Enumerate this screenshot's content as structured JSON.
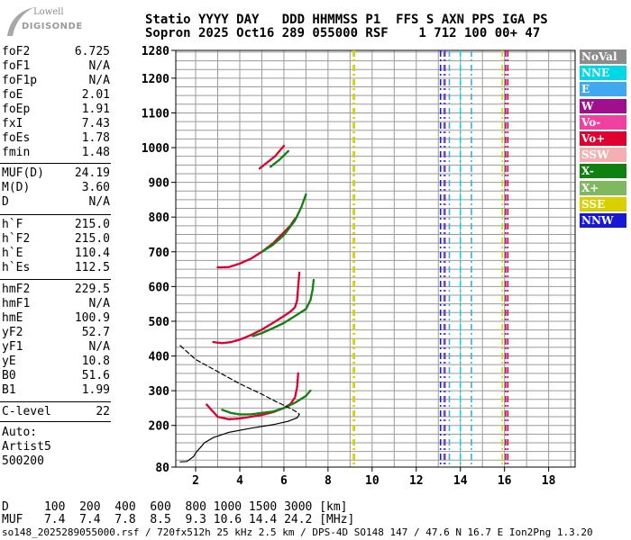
{
  "header": {
    "logo_top": "Lowell",
    "logo_bottom": "DIGISONDE",
    "line1": "Statio YYYY DAY   DDD HHMMSS P1  FFS S AXN PPS IGA PS",
    "line2": "Sopron 2025 Oct16 289 055000 RSF    1 712 100 00+ 47"
  },
  "params_group1": [
    {
      "name": "foF2",
      "value": "6.725"
    },
    {
      "name": "foF1",
      "value": "N/A"
    },
    {
      "name": "foF1p",
      "value": "N/A"
    },
    {
      "name": "foE",
      "value": "2.01"
    },
    {
      "name": "foEp",
      "value": "1.91"
    },
    {
      "name": "fxI",
      "value": "7.43"
    },
    {
      "name": "foEs",
      "value": "1.78"
    },
    {
      "name": "fmin",
      "value": "1.48"
    }
  ],
  "params_group2": [
    {
      "name": "MUF(D)",
      "value": "24.19"
    },
    {
      "name": "M(D)",
      "value": "3.60"
    },
    {
      "name": "D",
      "value": "N/A"
    }
  ],
  "params_group3": [
    {
      "name": "h`F",
      "value": "215.0"
    },
    {
      "name": "h`F2",
      "value": "215.0"
    },
    {
      "name": "h`E",
      "value": "110.4"
    },
    {
      "name": "h`Es",
      "value": "112.5"
    }
  ],
  "params_group4": [
    {
      "name": "hmF2",
      "value": "229.5"
    },
    {
      "name": "hmF1",
      "value": "N/A"
    },
    {
      "name": "hmE",
      "value": "100.9"
    },
    {
      "name": "yF2",
      "value": "52.7"
    },
    {
      "name": "yF1",
      "value": "N/A"
    },
    {
      "name": "yE",
      "value": "10.8"
    },
    {
      "name": "B0",
      "value": "51.6"
    },
    {
      "name": "B1",
      "value": "1.99"
    }
  ],
  "params_group5": [
    {
      "name": "C-level",
      "value": "22"
    }
  ],
  "autoscaling": {
    "line1": "Auto:",
    "line2": "Artist5",
    "line3": "500200"
  },
  "legend": [
    {
      "label": "NoVal",
      "color": "#8c8c8c"
    },
    {
      "label": "NNE",
      "color": "#00d8e8"
    },
    {
      "label": "E",
      "color": "#40a8f0"
    },
    {
      "label": "W",
      "color": "#a0108c"
    },
    {
      "label": "Vo-",
      "color": "#f040a0"
    },
    {
      "label": "Vo+",
      "color": "#e00030"
    },
    {
      "label": "SSW",
      "color": "#f4b0b0"
    },
    {
      "label": "X-",
      "color": "#108010"
    },
    {
      "label": "X+",
      "color": "#80b860"
    },
    {
      "label": "SSE",
      "color": "#d8d000"
    },
    {
      "label": "NNW",
      "color": "#1818d8"
    }
  ],
  "muf_table": {
    "line_d": "D     100  200  400  600  800 1000 1500 3000 [km]",
    "line_muf": "MUF   7.4  7.4  7.8  8.5  9.3 10.6 14.4 24.2 [MHz]"
  },
  "footer": "so148_2025289055000.rsf / 720fx512h 25 kHz 2.5 km / DPS-4D SO148 147 / 47.6 N 16.7 E Ion2Png 1.3.20",
  "chart_data": {
    "type": "scatter",
    "title": "",
    "xlabel": "",
    "ylabel": "",
    "xlim": [
      1.1,
      19.2
    ],
    "ylim": [
      80,
      1280
    ],
    "x_ticks": [
      2,
      4,
      6,
      8,
      10,
      12,
      14,
      16,
      18
    ],
    "y_ticks": [
      80,
      200,
      300,
      400,
      500,
      600,
      700,
      800,
      900,
      1000,
      1100,
      1200,
      1280
    ],
    "grid": true,
    "legend_position": "right",
    "series": [
      {
        "color": "#e00030",
        "points": [
          [
            2.5,
            260
          ],
          [
            3.0,
            225
          ],
          [
            3.5,
            218
          ],
          [
            4.0,
            220
          ],
          [
            4.5,
            225
          ],
          [
            5.0,
            230
          ],
          [
            5.5,
            238
          ],
          [
            6.0,
            250
          ],
          [
            6.3,
            262
          ],
          [
            6.5,
            280
          ],
          [
            6.6,
            310
          ],
          [
            6.65,
            350
          ]
        ]
      },
      {
        "color": "#108010",
        "points": [
          [
            3.2,
            245
          ],
          [
            3.6,
            236
          ],
          [
            4.0,
            232
          ],
          [
            4.5,
            232
          ],
          [
            5.0,
            236
          ],
          [
            5.5,
            240
          ],
          [
            6.0,
            250
          ],
          [
            6.5,
            265
          ],
          [
            7.0,
            285
          ],
          [
            7.2,
            300
          ]
        ]
      },
      {
        "color": "#e00030",
        "points": [
          [
            2.8,
            440
          ],
          [
            3.2,
            437
          ],
          [
            3.6,
            440
          ],
          [
            4.0,
            447
          ],
          [
            4.5,
            460
          ],
          [
            5.0,
            476
          ],
          [
            5.5,
            495
          ],
          [
            6.0,
            515
          ],
          [
            6.3,
            528
          ],
          [
            6.5,
            540
          ],
          [
            6.6,
            560
          ],
          [
            6.65,
            600
          ],
          [
            6.7,
            640
          ]
        ]
      },
      {
        "color": "#108010",
        "points": [
          [
            4.6,
            457
          ],
          [
            5.0,
            466
          ],
          [
            5.5,
            480
          ],
          [
            6.0,
            495
          ],
          [
            6.5,
            515
          ],
          [
            7.0,
            535
          ],
          [
            7.2,
            560
          ],
          [
            7.3,
            590
          ],
          [
            7.35,
            620
          ]
        ]
      },
      {
        "color": "#e00030",
        "points": [
          [
            3.0,
            655
          ],
          [
            3.5,
            656
          ],
          [
            4.0,
            666
          ],
          [
            4.5,
            680
          ],
          [
            5.0,
            700
          ],
          [
            5.5,
            724
          ],
          [
            6.0,
            756
          ],
          [
            6.3,
            776
          ],
          [
            6.5,
            795
          ]
        ]
      },
      {
        "color": "#108010",
        "points": [
          [
            5.0,
            700
          ],
          [
            5.5,
            720
          ],
          [
            6.0,
            748
          ],
          [
            6.5,
            790
          ],
          [
            6.8,
            830
          ],
          [
            7.0,
            865
          ]
        ]
      },
      {
        "color": "#e00030",
        "points": [
          [
            4.9,
            940
          ],
          [
            5.2,
            955
          ],
          [
            5.6,
            975
          ],
          [
            6.0,
            1005
          ]
        ]
      },
      {
        "color": "#108010",
        "points": [
          [
            5.4,
            945
          ],
          [
            5.8,
            965
          ],
          [
            6.2,
            990
          ]
        ]
      },
      {
        "color": "#000000",
        "points": [
          [
            1.3,
            95
          ],
          [
            1.6,
            96
          ],
          [
            1.9,
            110
          ],
          [
            2.05,
            125
          ],
          [
            2.2,
            135
          ],
          [
            2.4,
            150
          ],
          [
            2.8,
            165
          ],
          [
            3.5,
            180
          ],
          [
            4.5,
            192
          ],
          [
            5.5,
            202
          ],
          [
            6.2,
            212
          ],
          [
            6.6,
            222
          ],
          [
            6.7,
            232
          ]
        ]
      },
      {
        "color": "#000000",
        "points": [
          [
            1.3,
            430
          ],
          [
            2.0,
            390
          ],
          [
            3.0,
            355
          ],
          [
            4.0,
            320
          ],
          [
            5.0,
            290
          ],
          [
            5.6,
            270
          ],
          [
            6.2,
            252
          ],
          [
            6.6,
            238
          ],
          [
            6.7,
            232
          ]
        ]
      }
    ],
    "vertical_bands": [
      {
        "x": 9.15,
        "color": "#d8d000"
      },
      {
        "x": 9.2,
        "color": "#d8d000"
      },
      {
        "x": 13.1,
        "color": "#1818d8"
      },
      {
        "x": 13.25,
        "color": "#40a8f0"
      },
      {
        "x": 13.3,
        "color": "#a0108c"
      },
      {
        "x": 13.5,
        "color": "#40a8f0"
      },
      {
        "x": 14.0,
        "color": "#00d8e8"
      },
      {
        "x": 14.5,
        "color": "#40a8f0"
      },
      {
        "x": 15.9,
        "color": "#d8d000"
      },
      {
        "x": 16.05,
        "color": "#a0108c"
      },
      {
        "x": 16.15,
        "color": "#e00030"
      }
    ]
  }
}
